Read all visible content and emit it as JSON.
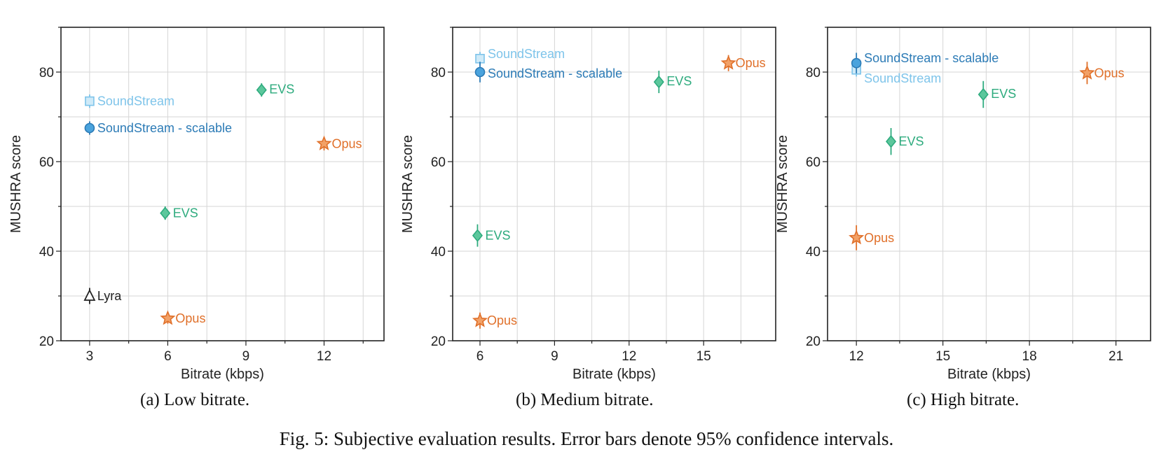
{
  "caption": "Fig. 5: Subjective evaluation results. Error bars denote 95% confidence intervals.",
  "colors": {
    "SoundStream": "#7ec4ea",
    "SoundStream - scalable": "#2c7bb6",
    "EVS": "#2eab7e",
    "Opus": "#e0702a",
    "Lyra": "#222222"
  },
  "markers": {
    "SoundStream": "square",
    "SoundStream - scalable": "circle",
    "EVS": "diamond",
    "Opus": "star",
    "Lyra": "triangle"
  },
  "chart_data": [
    {
      "type": "scatter",
      "caption": "(a) Low bitrate.",
      "xlabel": "Bitrate (kbps)",
      "ylabel": "MUSHRA score",
      "xlim": [
        1.9,
        14.3
      ],
      "ylim": [
        20,
        90
      ],
      "xticks": [
        3,
        6,
        9,
        12
      ],
      "yticks": [
        20,
        40,
        60,
        80
      ],
      "grid": true,
      "points": [
        {
          "series": "SoundStream",
          "x": 3,
          "y": 73.5,
          "err": 1.5,
          "label": "SoundStream"
        },
        {
          "series": "SoundStream - scalable",
          "x": 3,
          "y": 67.5,
          "err": 1.5,
          "label": "SoundStream - scalable"
        },
        {
          "series": "EVS",
          "x": 9.6,
          "y": 76,
          "err": 1.5,
          "label": "EVS"
        },
        {
          "series": "EVS",
          "x": 5.9,
          "y": 48.5,
          "err": 1.5,
          "label": "EVS"
        },
        {
          "series": "Opus",
          "x": 12,
          "y": 64,
          "err": 1.5,
          "label": "Opus"
        },
        {
          "series": "Opus",
          "x": 6,
          "y": 25,
          "err": 1.2,
          "label": "Opus"
        },
        {
          "series": "Lyra",
          "x": 3,
          "y": 30,
          "err": 1.8,
          "label": "Lyra"
        }
      ]
    },
    {
      "type": "scatter",
      "caption": "(b) Medium bitrate.",
      "xlabel": "Bitrate (kbps)",
      "ylabel": "MUSHRA score",
      "xlim": [
        4.9,
        17.9
      ],
      "ylim": [
        20,
        90
      ],
      "xticks": [
        6,
        9,
        12,
        15
      ],
      "yticks": [
        20,
        40,
        60,
        80
      ],
      "grid": true,
      "points": [
        {
          "series": "SoundStream",
          "x": 6,
          "y": 83,
          "err": 1.5,
          "label": "SoundStream"
        },
        {
          "series": "SoundStream - scalable",
          "x": 6,
          "y": 80,
          "err": 2.3,
          "label": "SoundStream - scalable"
        },
        {
          "series": "EVS",
          "x": 13.2,
          "y": 77.8,
          "err": 2.5,
          "label": "EVS"
        },
        {
          "series": "EVS",
          "x": 5.9,
          "y": 43.5,
          "err": 2.5,
          "label": "EVS"
        },
        {
          "series": "Opus",
          "x": 16,
          "y": 82,
          "err": 1.8,
          "label": "Opus"
        },
        {
          "series": "Opus",
          "x": 6,
          "y": 24.5,
          "err": 1.8,
          "label": "Opus"
        }
      ]
    },
    {
      "type": "scatter",
      "caption": "(c) High bitrate.",
      "xlabel": "Bitrate (kbps)",
      "ylabel": "MUSHRA score",
      "xlim": [
        11,
        22.2
      ],
      "ylim": [
        20,
        90
      ],
      "xticks": [
        12,
        15,
        18,
        21
      ],
      "yticks": [
        20,
        40,
        60,
        80
      ],
      "grid": true,
      "points": [
        {
          "series": "SoundStream",
          "x": 12,
          "y": 80.5,
          "err": 1.5,
          "label": "SoundStream"
        },
        {
          "series": "SoundStream - scalable",
          "x": 12,
          "y": 82,
          "err": 2.3,
          "label": "SoundStream - scalable"
        },
        {
          "series": "EVS",
          "x": 16.4,
          "y": 75,
          "err": 3,
          "label": "EVS"
        },
        {
          "series": "EVS",
          "x": 13.2,
          "y": 64.5,
          "err": 3,
          "label": "EVS"
        },
        {
          "series": "Opus",
          "x": 20,
          "y": 79.8,
          "err": 2.5,
          "label": "Opus"
        },
        {
          "series": "Opus",
          "x": 12,
          "y": 43,
          "err": 2.8,
          "label": "Opus"
        }
      ]
    }
  ]
}
